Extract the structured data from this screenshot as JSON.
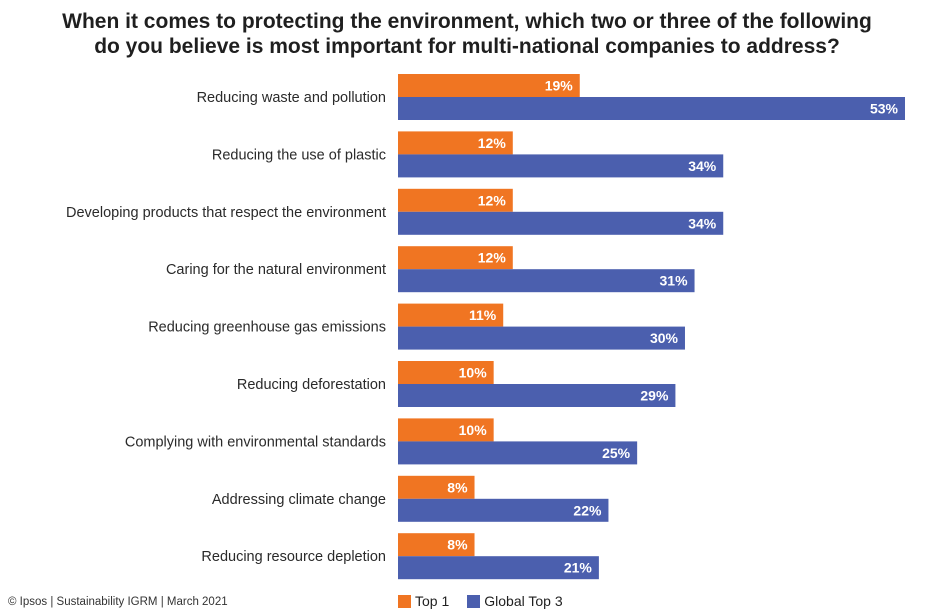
{
  "chart_data": {
    "type": "bar",
    "orientation": "horizontal",
    "title_lines": [
      "When it comes to protecting the environment, which two or three of the following",
      "do you believe is most important for multi-national companies to address?"
    ],
    "categories": [
      "Reducing waste and pollution",
      "Reducing the use of plastic",
      "Developing products that respect the environment",
      "Caring for the natural environment",
      "Reducing greenhouse gas emissions",
      "Reducing deforestation",
      "Complying with environmental standards",
      "Addressing climate change",
      "Reducing resource depletion"
    ],
    "series": [
      {
        "name": "Top 1",
        "color": "#f07522",
        "values": [
          19,
          12,
          12,
          12,
          11,
          10,
          10,
          8,
          8
        ]
      },
      {
        "name": "Global Top 3",
        "color": "#4b5fae",
        "values": [
          53,
          34,
          34,
          31,
          30,
          29,
          25,
          22,
          21
        ]
      }
    ],
    "value_suffix": "%",
    "xlim": [
      0,
      53
    ],
    "grid": false,
    "legend_position": "bottom"
  },
  "footer": "© Ipsos | Sustainability IGRM | March 2021"
}
